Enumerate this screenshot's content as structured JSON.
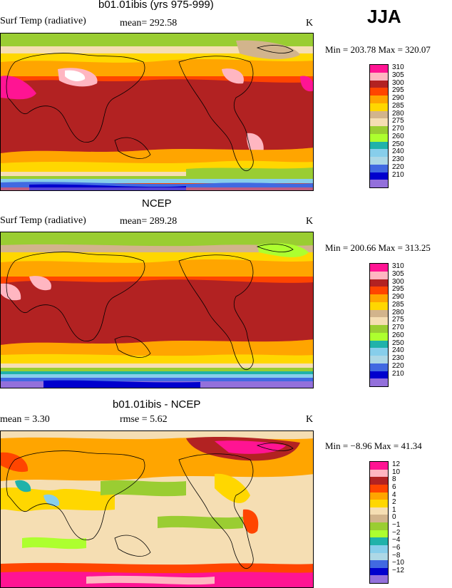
{
  "season": "JJA",
  "panels": [
    {
      "title": "b01.01ibis (yrs 975-999)",
      "field": "Surf Temp (radiative)",
      "stat_left": "mean= 292.58",
      "stat_right": "",
      "units": "K",
      "minmax": "Min = 203.78 Max = 320.07"
    },
    {
      "title": "NCEP",
      "field": "Surf Temp (radiative)",
      "stat_left": "mean= 289.28",
      "stat_right": "",
      "units": "K",
      "minmax": "Min = 200.66 Max = 313.25"
    },
    {
      "title": "b01.01ibis - NCEP",
      "field": "mean =     3.30",
      "stat_left": "",
      "stat_right": "rmse =     5.62",
      "units": "K",
      "minmax": "Min =  −8.96 Max =  41.34"
    }
  ],
  "colorbar_temp": {
    "colors": [
      "#ff1493",
      "#ffb6c1",
      "#b22222",
      "#ff4500",
      "#ffa500",
      "#ffd700",
      "#d2b48c",
      "#f5deb3",
      "#9acd32",
      "#adff2f",
      "#20b2aa",
      "#87ceeb",
      "#add8e6",
      "#4169e1",
      "#0000cd",
      "#9370db"
    ],
    "labels": [
      "310",
      "305",
      "300",
      "295",
      "290",
      "285",
      "280",
      "275",
      "270",
      "260",
      "250",
      "240",
      "230",
      "220",
      "210"
    ]
  },
  "colorbar_diff": {
    "colors": [
      "#ff1493",
      "#ffb6c1",
      "#b22222",
      "#ff4500",
      "#ffa500",
      "#ffd700",
      "#f5deb3",
      "#d2b48c",
      "#9acd32",
      "#adff2f",
      "#20b2aa",
      "#87ceeb",
      "#add8e6",
      "#4169e1",
      "#0000cd",
      "#9370db"
    ],
    "labels": [
      "12",
      "10",
      "8",
      "6",
      "4",
      "2",
      "1",
      "0",
      "−1",
      "−2",
      "−4",
      "−6",
      "−8",
      "−10",
      "−12"
    ]
  }
}
